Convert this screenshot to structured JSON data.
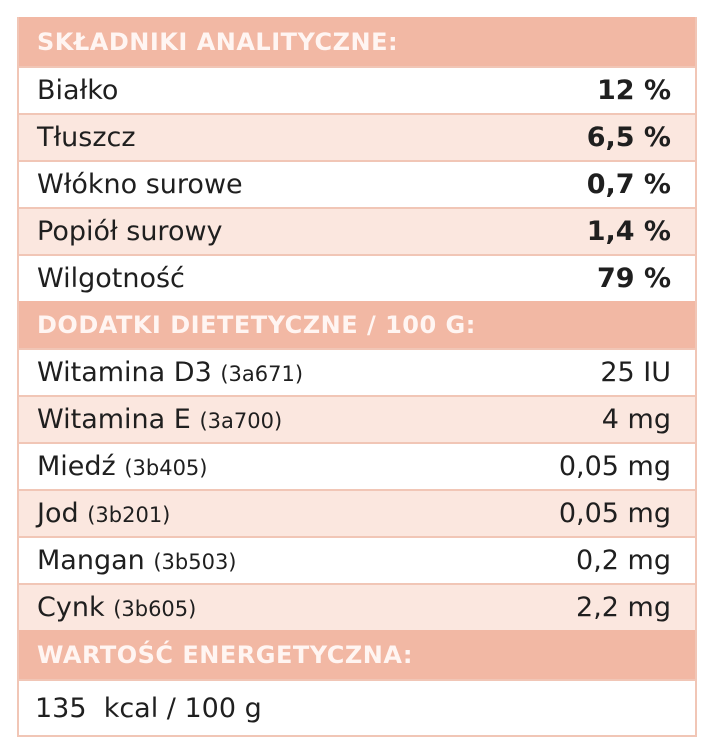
{
  "sections": {
    "analytical_header": "SKŁADNIKI ANALITYCZNE:",
    "additives_header": "DODATKI DIETETYCZNE / 100 G:",
    "energy_header": "WARTOŚĆ ENERGETYCZNA:"
  },
  "analytical": [
    {
      "label": "Białko",
      "value": "12 %"
    },
    {
      "label": "Tłuszcz",
      "value": "6,5 %"
    },
    {
      "label": "Włókno surowe",
      "value": "0,7 %"
    },
    {
      "label": "Popiół surowy",
      "value": "1,4 %"
    },
    {
      "label": "Wilgotność",
      "value": "79 %"
    }
  ],
  "additives": [
    {
      "label": "Witamina D3",
      "code": "(3a671)",
      "value": "25 IU"
    },
    {
      "label": "Witamina E",
      "code": "(3a700)",
      "value": "4 mg"
    },
    {
      "label": "Miedź",
      "code": "(3b405)",
      "value": "0,05 mg"
    },
    {
      "label": "Jod",
      "code": "(3b201)",
      "value": "0,05 mg"
    },
    {
      "label": "Mangan",
      "code": "(3b503)",
      "value": "0,2 mg"
    },
    {
      "label": "Cynk",
      "code": "(3b605)",
      "value": "2,2 mg"
    }
  ],
  "energy": {
    "value": "135  kcal / 100 g"
  }
}
